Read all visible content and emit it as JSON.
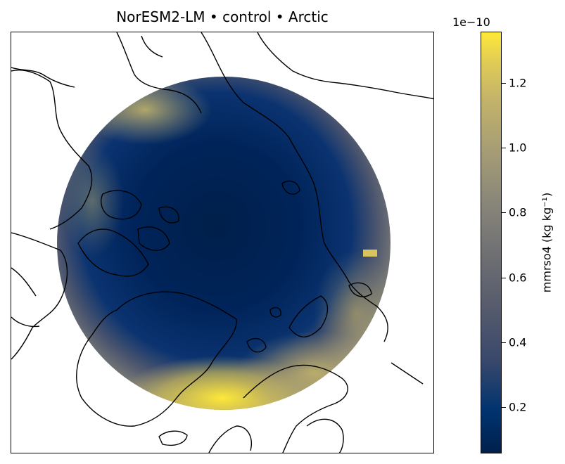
{
  "title": "NorESM2-LM • control • Arctic",
  "colorbar": {
    "label": "mmrso4 (kg kg⁻¹)",
    "exponent": "1e−10",
    "ticks": [
      "0.2",
      "0.4",
      "0.6",
      "0.8",
      "1.0",
      "1.2"
    ],
    "min": 0.06,
    "max": 1.36,
    "colormap": "cividis"
  },
  "map": {
    "projection": "north-polar-stereographic",
    "field": "mmrso4",
    "units_scale": "1e-10",
    "colors": {
      "low": "#00204c",
      "mid": "#707173",
      "high": "#fee838",
      "coastline": "#000000"
    }
  }
}
